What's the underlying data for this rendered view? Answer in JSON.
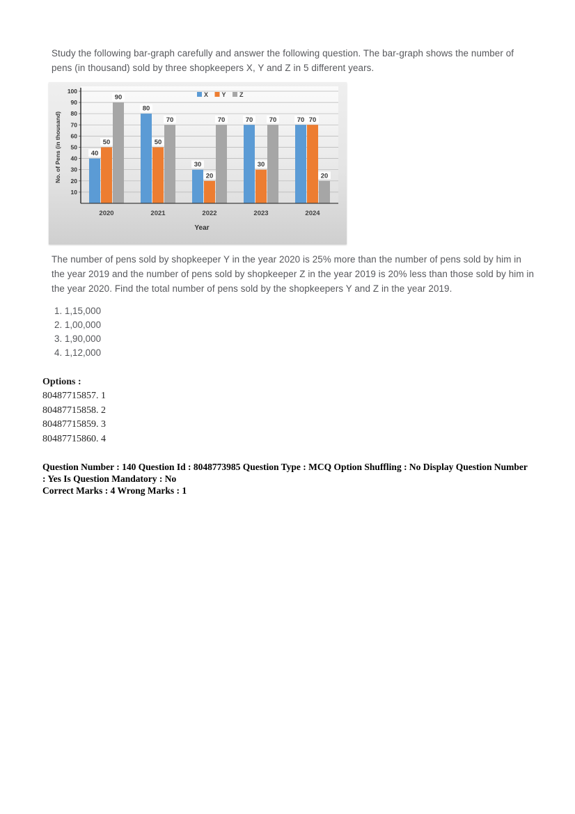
{
  "page": {
    "intro": "Study the following bar-graph carefully and answer the following question. The bar-graph shows the number of pens (in thousand) sold by three shopkeepers X, Y and Z in 5 different years.",
    "question": "The number of pens sold by shopkeeper Y in the year 2020 is 25% more than the number of pens sold by him in the year 2019 and the number of pens sold by shopkeeper Z in the year 2019 is 20% less than those sold by him in the year 2020. Find the total number of pens sold by the shopkeepers Y and Z in the year 2019.",
    "choices": [
      "1. 1,15,000",
      "2. 1,00,000",
      "3. 1,90,000",
      "4. 1,12,000"
    ],
    "options_heading": "Options :",
    "option_ids": [
      "80487715857. 1",
      "80487715858. 2",
      "80487715859. 3",
      "80487715860. 4"
    ],
    "metadata_line1": "Question Number : 140 Question Id : 8048773985 Question Type : MCQ Option Shuffling : No Display Question Number : Yes Is Question Mandatory : No",
    "metadata_line2": "Correct Marks : 4 Wrong Marks : 1"
  },
  "chart_data": {
    "type": "bar",
    "title": "",
    "categories": [
      "2020",
      "2021",
      "2022",
      "2023",
      "2024"
    ],
    "series": [
      {
        "name": "X",
        "color": "#5B9BD5",
        "values": [
          40,
          80,
          30,
          70,
          70
        ]
      },
      {
        "name": "Y",
        "color": "#ED7D31",
        "values": [
          50,
          50,
          20,
          30,
          70
        ]
      },
      {
        "name": "Z",
        "color": "#A6A6A6",
        "values": [
          90,
          70,
          70,
          70,
          20
        ]
      }
    ],
    "xlabel": "Year",
    "ylabel": "No. of Pens (in thousand)",
    "ylim": [
      0,
      100
    ],
    "ytick_step": 10,
    "grid": true,
    "legend_position": "top",
    "data_labels": true
  }
}
